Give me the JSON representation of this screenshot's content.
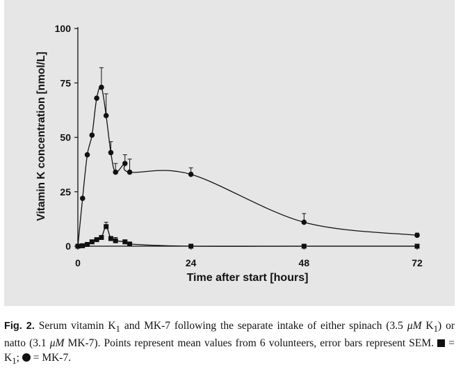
{
  "chart_data": {
    "type": "line",
    "xlabel": "Time after start [hours]",
    "ylabel": "Vitamin K concentration [nmol/L]",
    "xlim": [
      0,
      72
    ],
    "ylim": [
      0,
      100
    ],
    "x_ticks": [
      0,
      24,
      48,
      72
    ],
    "y_ticks": [
      0,
      25,
      50,
      75,
      100
    ],
    "x_tick_labels": [
      "0",
      "24",
      "48",
      "72"
    ],
    "y_tick_labels": [
      "0",
      "25",
      "50",
      "75",
      "100"
    ],
    "grid": false,
    "legend": "none",
    "series": [
      {
        "marker": "circle",
        "color": "#111111",
        "points": [
          {
            "x": 0,
            "y": 0
          },
          {
            "x": 1,
            "y": 22
          },
          {
            "x": 2,
            "y": 42
          },
          {
            "x": 3,
            "y": 51
          },
          {
            "x": 4,
            "y": 68
          },
          {
            "x": 5,
            "y": 73,
            "err": 9
          },
          {
            "x": 6,
            "y": 60,
            "err": 10
          },
          {
            "x": 7,
            "y": 43,
            "err": 5
          },
          {
            "x": 8,
            "y": 34,
            "err": 4
          },
          {
            "x": 10,
            "y": 38,
            "err": 4
          },
          {
            "x": 11,
            "y": 34,
            "err": 6
          },
          {
            "x": 24,
            "y": 33,
            "err": 3
          },
          {
            "x": 48,
            "y": 11,
            "err": 4
          },
          {
            "x": 72,
            "y": 5,
            "err": 1
          }
        ]
      },
      {
        "marker": "square",
        "color": "#111111",
        "points": [
          {
            "x": 0,
            "y": 0
          },
          {
            "x": 1,
            "y": 0.2
          },
          {
            "x": 2,
            "y": 0.8
          },
          {
            "x": 3,
            "y": 2
          },
          {
            "x": 4,
            "y": 3
          },
          {
            "x": 5,
            "y": 4
          },
          {
            "x": 6,
            "y": 9,
            "err": 2
          },
          {
            "x": 7,
            "y": 3.5,
            "err": 1
          },
          {
            "x": 8,
            "y": 2.5,
            "err": 1.5
          },
          {
            "x": 10,
            "y": 2
          },
          {
            "x": 11,
            "y": 1
          },
          {
            "x": 24,
            "y": 0
          },
          {
            "x": 48,
            "y": 0
          },
          {
            "x": 72,
            "y": 0
          }
        ]
      }
    ]
  },
  "caption": {
    "fig_label": "Fig. 2.",
    "text_part1": " Serum vitamin K",
    "k1_sub": "1",
    "text_part2": " and MK-7 following the separate intake of either spinach (3.5 ",
    "unit1": "μM",
    "text_part3": " K",
    "k1_sub_2": "1",
    "text_part4": ") or natto (3.1 ",
    "unit2": "μM",
    "text_part5": " MK-7). Points represent mean values from 6 volunteers, error bars represent SEM. ",
    "legend_k1": " = K",
    "legend_k1_sub": "1",
    "legend_sep": "; ",
    "legend_mk7": " = MK-7."
  }
}
